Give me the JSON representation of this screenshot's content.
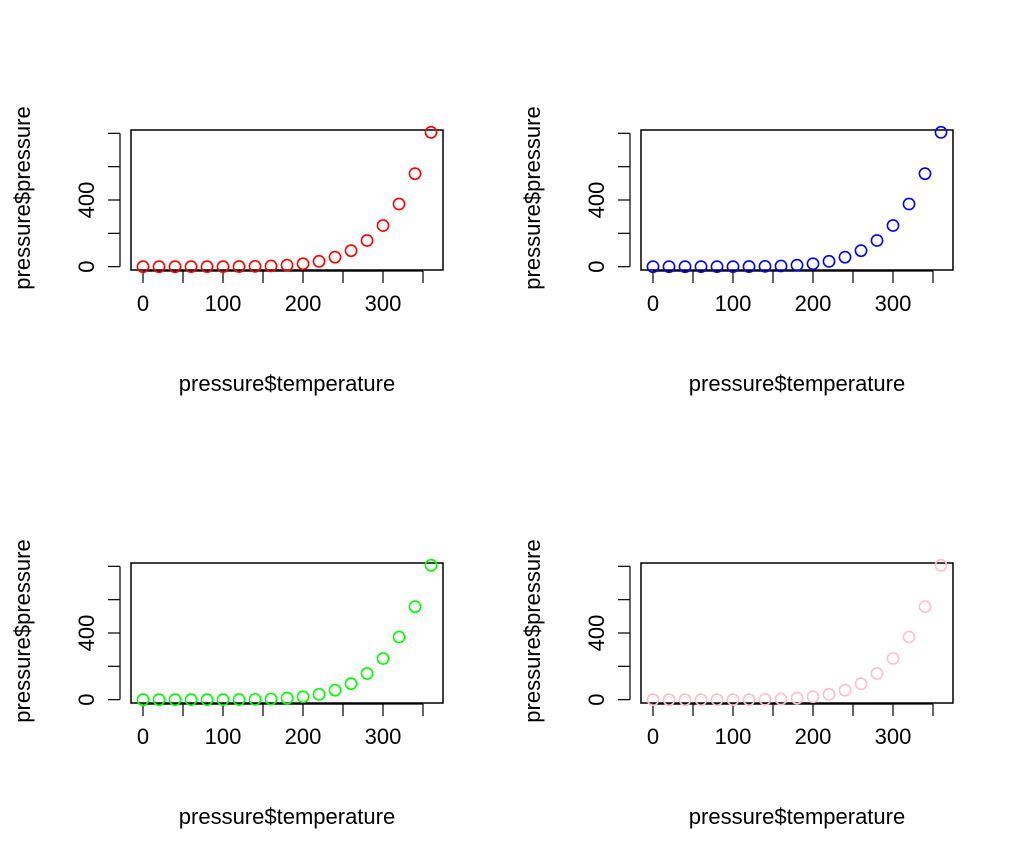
{
  "chart_data": [
    {
      "type": "scatter",
      "xlabel": "pressure$temperature",
      "ylabel": "pressure$pressure",
      "color": "#ff0000",
      "xlim": [
        -15,
        375
      ],
      "ylim": [
        -20,
        820
      ],
      "xticks": [
        0,
        100,
        200,
        300
      ],
      "yticks_labeled": [
        0,
        400
      ],
      "yticks": [
        0,
        200,
        400,
        600,
        800
      ],
      "grid": false,
      "x": [
        0,
        20,
        40,
        60,
        80,
        100,
        120,
        140,
        160,
        180,
        200,
        220,
        240,
        260,
        280,
        300,
        320,
        340,
        360
      ],
      "y": [
        0.0002,
        0.0012,
        0.006,
        0.03,
        0.09,
        0.27,
        0.75,
        1.85,
        4.2,
        8.8,
        17.3,
        32.1,
        57,
        96,
        157,
        247,
        376,
        558,
        806
      ]
    },
    {
      "type": "scatter",
      "xlabel": "pressure$temperature",
      "ylabel": "pressure$pressure",
      "color": "#0000ff",
      "xlim": [
        -15,
        375
      ],
      "ylim": [
        -20,
        820
      ],
      "xticks": [
        0,
        100,
        200,
        300
      ],
      "yticks_labeled": [
        0,
        400
      ],
      "yticks": [
        0,
        200,
        400,
        600,
        800
      ],
      "grid": false,
      "x": [
        0,
        20,
        40,
        60,
        80,
        100,
        120,
        140,
        160,
        180,
        200,
        220,
        240,
        260,
        280,
        300,
        320,
        340,
        360
      ],
      "y": [
        0.0002,
        0.0012,
        0.006,
        0.03,
        0.09,
        0.27,
        0.75,
        1.85,
        4.2,
        8.8,
        17.3,
        32.1,
        57,
        96,
        157,
        247,
        376,
        558,
        806
      ]
    },
    {
      "type": "scatter",
      "xlabel": "pressure$temperature",
      "ylabel": "pressure$pressure",
      "color": "#00ff00",
      "xlim": [
        -15,
        375
      ],
      "ylim": [
        -20,
        820
      ],
      "xticks": [
        0,
        100,
        200,
        300
      ],
      "yticks_labeled": [
        0,
        400
      ],
      "yticks": [
        0,
        200,
        400,
        600,
        800
      ],
      "grid": false,
      "x": [
        0,
        20,
        40,
        60,
        80,
        100,
        120,
        140,
        160,
        180,
        200,
        220,
        240,
        260,
        280,
        300,
        320,
        340,
        360
      ],
      "y": [
        0.0002,
        0.0012,
        0.006,
        0.03,
        0.09,
        0.27,
        0.75,
        1.85,
        4.2,
        8.8,
        17.3,
        32.1,
        57,
        96,
        157,
        247,
        376,
        558,
        806
      ]
    },
    {
      "type": "scatter",
      "xlabel": "pressure$temperature",
      "ylabel": "pressure$pressure",
      "color": "#ffc0cb",
      "xlim": [
        -15,
        375
      ],
      "ylim": [
        -20,
        820
      ],
      "xticks": [
        0,
        100,
        200,
        300
      ],
      "yticks_labeled": [
        0,
        400
      ],
      "yticks": [
        0,
        200,
        400,
        600,
        800
      ],
      "grid": false,
      "x": [
        0,
        20,
        40,
        60,
        80,
        100,
        120,
        140,
        160,
        180,
        200,
        220,
        240,
        260,
        280,
        300,
        320,
        340,
        360
      ],
      "y": [
        0.0002,
        0.0012,
        0.006,
        0.03,
        0.09,
        0.27,
        0.75,
        1.85,
        4.2,
        8.8,
        17.3,
        32.1,
        57,
        96,
        157,
        247,
        376,
        558,
        806
      ]
    }
  ]
}
